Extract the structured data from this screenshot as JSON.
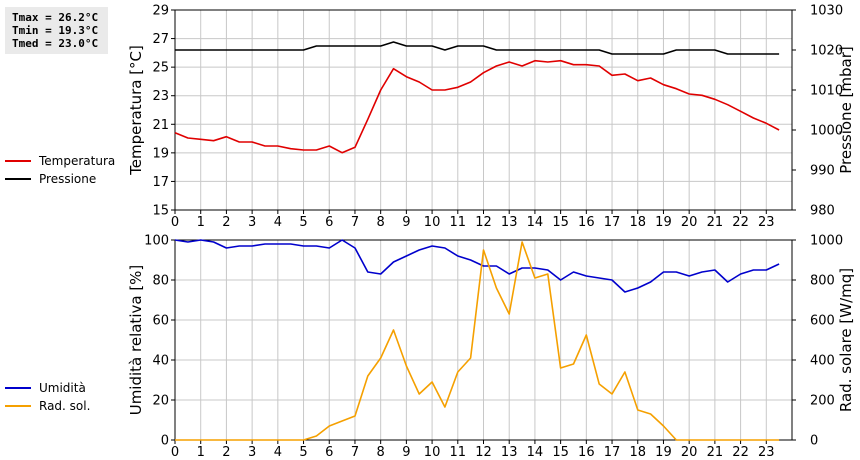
{
  "stats": {
    "tmax": "Tmax = 26.2°C",
    "tmin": "Tmin = 19.3°C",
    "tmed": "Tmed = 23.0°C"
  },
  "colors": {
    "temperature": "#e00000",
    "pressure": "#000000",
    "humidity": "#0000cc",
    "solar": "#f5a000",
    "grid": "#c8c8c8"
  },
  "legend_top": [
    "Temperatura",
    "Pressione"
  ],
  "legend_bottom": [
    "Umidità",
    "Rad. sol."
  ],
  "chart_data": [
    {
      "type": "line",
      "xlim": [
        0,
        24
      ],
      "x_ticks": [
        "0",
        "1",
        "2",
        "3",
        "4",
        "5",
        "6",
        "7",
        "8",
        "9",
        "10",
        "11",
        "12",
        "13",
        "14",
        "15",
        "16",
        "17",
        "18",
        "19",
        "20",
        "21",
        "22",
        "23"
      ],
      "ylabel": "Temperatura [°C]",
      "ylim": [
        15,
        30
      ],
      "y_ticks": [
        "15",
        "17",
        "19",
        "21",
        "23",
        "25",
        "27",
        "29"
      ],
      "y2label": "Pressione [mbar]",
      "y2lim": [
        980,
        1030
      ],
      "y2_ticks": [
        "980",
        "990",
        "1000",
        "1010",
        "1020",
        "1030"
      ],
      "grid": true,
      "series": [
        {
          "name": "Temperatura",
          "axis": "left",
          "x": [
            0,
            0.5,
            1,
            1.5,
            2,
            2.5,
            3,
            3.5,
            4,
            4.5,
            5,
            5.5,
            6,
            6.5,
            7,
            7.5,
            8,
            8.5,
            9,
            9.5,
            10,
            10.5,
            11,
            11.5,
            12,
            12.5,
            13,
            13.5,
            14,
            14.5,
            15,
            15.5,
            16,
            16.5,
            17,
            17.5,
            18,
            18.5,
            19,
            19.5,
            20,
            20.5,
            21,
            21.5,
            22,
            22.5,
            23,
            23.5
          ],
          "y": [
            20.8,
            20.4,
            20.3,
            20.2,
            20.5,
            20.1,
            20.1,
            19.8,
            19.8,
            19.6,
            19.5,
            19.5,
            19.8,
            19.3,
            19.7,
            21.8,
            24,
            25.6,
            25,
            24.6,
            24,
            24,
            24.2,
            24.6,
            25.3,
            25.8,
            26.1,
            25.8,
            26.2,
            26.1,
            26.2,
            25.9,
            25.9,
            25.8,
            25.1,
            25.2,
            24.7,
            24.9,
            24.4,
            24.1,
            23.7,
            23.6,
            23.3,
            22.9,
            22.4,
            21.9,
            21.5,
            21
          ]
        },
        {
          "name": "Pressione",
          "axis": "right",
          "x": [
            0,
            0.5,
            1,
            1.5,
            2,
            2.5,
            3,
            3.5,
            4,
            4.5,
            5,
            5.5,
            6,
            6.5,
            7,
            7.5,
            8,
            8.5,
            9,
            9.5,
            10,
            10.5,
            11,
            11.5,
            12,
            12.5,
            13,
            13.5,
            14,
            14.5,
            15,
            15.5,
            16,
            16.5,
            17,
            17.5,
            18,
            18.5,
            19,
            19.5,
            20,
            20.5,
            21,
            21.5,
            22,
            22.5,
            23,
            23.5
          ],
          "y": [
            1020,
            1020,
            1020,
            1020,
            1020,
            1020,
            1020,
            1020,
            1020,
            1020,
            1020,
            1021,
            1021,
            1021,
            1021,
            1021,
            1021,
            1022,
            1021,
            1021,
            1021,
            1020,
            1021,
            1021,
            1021,
            1020,
            1020,
            1020,
            1020,
            1020,
            1020,
            1020,
            1020,
            1020,
            1019,
            1019,
            1019,
            1019,
            1019,
            1020,
            1020,
            1020,
            1020,
            1019,
            1019,
            1019,
            1019,
            1019
          ]
        }
      ]
    },
    {
      "type": "line",
      "xlim": [
        0,
        24
      ],
      "x_ticks": [
        "0",
        "1",
        "2",
        "3",
        "4",
        "5",
        "6",
        "7",
        "8",
        "9",
        "10",
        "11",
        "12",
        "13",
        "14",
        "15",
        "16",
        "17",
        "18",
        "19",
        "20",
        "21",
        "22",
        "23"
      ],
      "ylabel": "Umidità relativa [%]",
      "ylim": [
        0,
        100
      ],
      "y_ticks": [
        "0",
        "20",
        "40",
        "60",
        "80",
        "100"
      ],
      "y2label": "Rad. solare [W/mq]",
      "y2lim": [
        0,
        1000
      ],
      "y2_ticks": [
        "0",
        "200",
        "400",
        "600",
        "800",
        "1000"
      ],
      "grid": true,
      "series": [
        {
          "name": "Umidità",
          "axis": "left",
          "x": [
            0,
            0.5,
            1,
            1.5,
            2,
            2.5,
            3,
            3.5,
            4,
            4.5,
            5,
            5.5,
            6,
            6.5,
            7,
            7.5,
            8,
            8.5,
            9,
            9.5,
            10,
            10.5,
            11,
            11.5,
            12,
            12.5,
            13,
            13.5,
            14,
            14.5,
            15,
            15.5,
            16,
            16.5,
            17,
            17.5,
            18,
            18.5,
            19,
            19.5,
            20,
            20.5,
            21,
            21.5,
            22,
            22.5,
            23,
            23.5
          ],
          "y": [
            100,
            99,
            100,
            99,
            96,
            97,
            97,
            98,
            98,
            98,
            97,
            97,
            96,
            100,
            96,
            84,
            83,
            89,
            92,
            95,
            97,
            96,
            92,
            90,
            87,
            87,
            83,
            86,
            86,
            85,
            80,
            84,
            82,
            81,
            80,
            74,
            76,
            79,
            84,
            84,
            82,
            84,
            85,
            79,
            83,
            85,
            85,
            88
          ]
        },
        {
          "name": "Rad. sol.",
          "axis": "right",
          "x": [
            0,
            0.5,
            1,
            1.5,
            2,
            2.5,
            3,
            3.5,
            4,
            4.5,
            5,
            5.5,
            6,
            6.5,
            7,
            7.5,
            8,
            8.5,
            9,
            9.5,
            10,
            10.5,
            11,
            11.5,
            12,
            12.5,
            13,
            13.5,
            14,
            14.5,
            15,
            15.5,
            16,
            16.5,
            17,
            17.5,
            18,
            18.5,
            19,
            19.5,
            20,
            20.5,
            21,
            21.5,
            22,
            22.5,
            23,
            23.5
          ],
          "y": [
            0,
            0,
            0,
            0,
            0,
            0,
            0,
            0,
            0,
            0,
            0,
            20,
            70,
            95,
            120,
            320,
            410,
            550,
            370,
            230,
            290,
            165,
            340,
            410,
            950,
            760,
            630,
            990,
            810,
            830,
            360,
            380,
            525,
            280,
            230,
            340,
            150,
            130,
            70,
            0,
            0,
            0,
            0,
            0,
            0,
            0,
            0,
            0
          ]
        }
      ]
    }
  ]
}
